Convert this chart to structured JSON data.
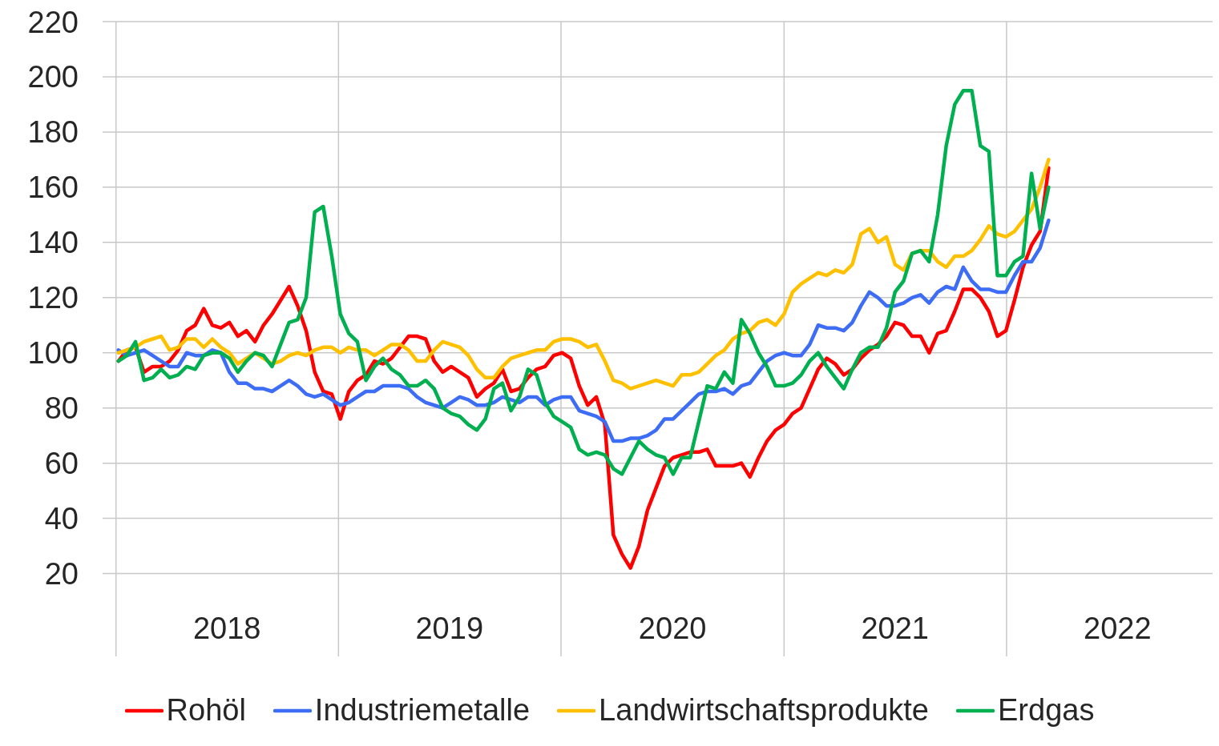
{
  "chart_data": {
    "type": "line",
    "x": [
      "2018-01-05",
      "2018-01-19",
      "2018-02-02",
      "2018-02-16",
      "2018-03-02",
      "2018-03-16",
      "2018-03-30",
      "2018-04-13",
      "2018-04-27",
      "2018-05-11",
      "2018-05-25",
      "2018-06-08",
      "2018-06-22",
      "2018-07-06",
      "2018-07-20",
      "2018-08-03",
      "2018-08-17",
      "2018-08-31",
      "2018-09-14",
      "2018-09-28",
      "2018-10-12",
      "2018-10-26",
      "2018-11-09",
      "2018-11-23",
      "2018-12-07",
      "2018-12-21",
      "2019-01-04",
      "2019-01-18",
      "2019-02-01",
      "2019-02-15",
      "2019-03-01",
      "2019-03-15",
      "2019-03-29",
      "2019-04-12",
      "2019-04-26",
      "2019-05-10",
      "2019-05-24",
      "2019-06-07",
      "2019-06-21",
      "2019-07-05",
      "2019-07-19",
      "2019-08-02",
      "2019-08-16",
      "2019-08-30",
      "2019-09-13",
      "2019-09-27",
      "2019-10-11",
      "2019-10-25",
      "2019-11-08",
      "2019-11-22",
      "2019-12-06",
      "2019-12-20",
      "2020-01-03",
      "2020-01-17",
      "2020-01-31",
      "2020-02-14",
      "2020-02-28",
      "2020-03-13",
      "2020-03-27",
      "2020-04-10",
      "2020-04-24",
      "2020-05-08",
      "2020-05-22",
      "2020-06-05",
      "2020-06-19",
      "2020-07-03",
      "2020-07-17",
      "2020-07-31",
      "2020-08-14",
      "2020-08-28",
      "2020-09-11",
      "2020-09-25",
      "2020-10-09",
      "2020-10-23",
      "2020-11-06",
      "2020-11-20",
      "2020-12-04",
      "2020-12-18",
      "2021-01-01",
      "2021-01-15",
      "2021-01-29",
      "2021-02-12",
      "2021-02-26",
      "2021-03-12",
      "2021-03-26",
      "2021-04-09",
      "2021-04-23",
      "2021-05-07",
      "2021-05-21",
      "2021-06-04",
      "2021-06-18",
      "2021-07-02",
      "2021-07-16",
      "2021-07-30",
      "2021-08-13",
      "2021-08-27",
      "2021-09-10",
      "2021-09-24",
      "2021-10-08",
      "2021-10-22",
      "2021-11-05",
      "2021-11-19",
      "2021-12-03",
      "2021-12-17",
      "2021-12-31",
      "2022-01-14",
      "2022-01-28",
      "2022-02-11",
      "2022-02-25",
      "2022-03-11"
    ],
    "series": [
      {
        "name": "Rohöl",
        "color": "#ff0000",
        "values": [
          97,
          101,
          102,
          93,
          95,
          95,
          97,
          101,
          108,
          110,
          116,
          110,
          109,
          111,
          106,
          108,
          104,
          110,
          114,
          119,
          124,
          117,
          108,
          93,
          86,
          85,
          76,
          86,
          90,
          92,
          97,
          96,
          98,
          102,
          106,
          106,
          105,
          97,
          93,
          95,
          93,
          91,
          84,
          87,
          89,
          94,
          86,
          87,
          91,
          94,
          95,
          99,
          100,
          98,
          88,
          81,
          84,
          74,
          34,
          27,
          22,
          30,
          43,
          51,
          59,
          62,
          63,
          64,
          64,
          65,
          59,
          59,
          59,
          60,
          55,
          62,
          68,
          72,
          74,
          78,
          80,
          87,
          94,
          98,
          96,
          92,
          94,
          98,
          101,
          103,
          106,
          111,
          110,
          106,
          106,
          100,
          107,
          108,
          115,
          123,
          123,
          120,
          115,
          106,
          108,
          119,
          131,
          139,
          144,
          167
        ]
      },
      {
        "name": "Industriemetalle",
        "color": "#3d6cf5",
        "values": [
          101,
          99,
          100,
          101,
          99,
          97,
          95,
          95,
          100,
          99,
          99,
          101,
          100,
          93,
          89,
          89,
          87,
          87,
          86,
          88,
          90,
          88,
          85,
          84,
          85,
          83,
          81,
          82,
          84,
          86,
          86,
          88,
          88,
          88,
          87,
          84,
          82,
          81,
          80,
          82,
          84,
          83,
          81,
          81,
          82,
          84,
          83,
          82,
          84,
          84,
          81,
          83,
          84,
          84,
          79,
          78,
          77,
          75,
          68,
          68,
          69,
          69,
          70,
          72,
          76,
          76,
          79,
          82,
          85,
          86,
          86,
          87,
          85,
          88,
          89,
          93,
          97,
          99,
          100,
          99,
          99,
          103,
          110,
          109,
          109,
          108,
          111,
          117,
          122,
          120,
          117,
          117,
          118,
          120,
          121,
          118,
          122,
          124,
          123,
          131,
          126,
          123,
          123,
          122,
          122,
          128,
          133,
          133,
          138,
          148
        ]
      },
      {
        "name": "Landwirtschaftsprodukte",
        "color": "#ffc000",
        "values": [
          100,
          101,
          102,
          104,
          105,
          106,
          101,
          102,
          105,
          105,
          102,
          105,
          102,
          100,
          96,
          98,
          100,
          98,
          96,
          97,
          99,
          100,
          99,
          101,
          102,
          102,
          100,
          102,
          101,
          101,
          99,
          101,
          103,
          103,
          101,
          97,
          97,
          101,
          104,
          103,
          102,
          99,
          94,
          91,
          91,
          95,
          98,
          99,
          100,
          101,
          101,
          104,
          105,
          105,
          104,
          102,
          103,
          97,
          90,
          89,
          87,
          88,
          89,
          90,
          89,
          88,
          92,
          92,
          93,
          96,
          99,
          101,
          105,
          107,
          108,
          111,
          112,
          110,
          114,
          122,
          125,
          127,
          129,
          128,
          130,
          129,
          132,
          143,
          145,
          140,
          142,
          132,
          130,
          136,
          137,
          137,
          133,
          131,
          135,
          135,
          137,
          141,
          146,
          143,
          142,
          144,
          148,
          152,
          160,
          170
        ]
      },
      {
        "name": "Erdgas",
        "color": "#00b050",
        "values": [
          97,
          99,
          104,
          90,
          91,
          94,
          91,
          92,
          95,
          94,
          99,
          100,
          100,
          98,
          93,
          97,
          100,
          99,
          95,
          103,
          111,
          112,
          120,
          151,
          153,
          135,
          114,
          107,
          104,
          90,
          95,
          98,
          94,
          92,
          88,
          88,
          90,
          87,
          80,
          78,
          77,
          74,
          72,
          76,
          87,
          89,
          79,
          84,
          94,
          92,
          82,
          77,
          75,
          73,
          65,
          63,
          64,
          63,
          58,
          56,
          62,
          68,
          65,
          63,
          62,
          56,
          62,
          62,
          75,
          88,
          87,
          93,
          89,
          112,
          107,
          100,
          95,
          88,
          88,
          89,
          92,
          97,
          100,
          95,
          91,
          87,
          94,
          100,
          102,
          102,
          109,
          122,
          126,
          136,
          137,
          133,
          150,
          175,
          190,
          195,
          195,
          175,
          173,
          128,
          128,
          133,
          135,
          165,
          145,
          160
        ]
      }
    ],
    "xlim": [
      "2017-12-10",
      "2022-12-05"
    ],
    "xticks": [
      {
        "value": "2018-01-01",
        "label": null
      },
      {
        "value": "2018-07-02",
        "label": "2018"
      },
      {
        "value": "2019-01-01",
        "label": null
      },
      {
        "value": "2019-07-02",
        "label": "2019"
      },
      {
        "value": "2020-01-01",
        "label": null
      },
      {
        "value": "2020-07-02",
        "label": "2020"
      },
      {
        "value": "2021-01-01",
        "label": null
      },
      {
        "value": "2021-07-02",
        "label": "2021"
      },
      {
        "value": "2022-01-01",
        "label": null
      },
      {
        "value": "2022-07-02",
        "label": "2022"
      }
    ],
    "ylim": [
      -10,
      220
    ],
    "yticks": [
      20,
      40,
      60,
      80,
      100,
      120,
      140,
      160,
      180,
      200,
      220
    ],
    "grid": true,
    "legend": "bottom",
    "marker": "none",
    "line_style": "solid"
  }
}
